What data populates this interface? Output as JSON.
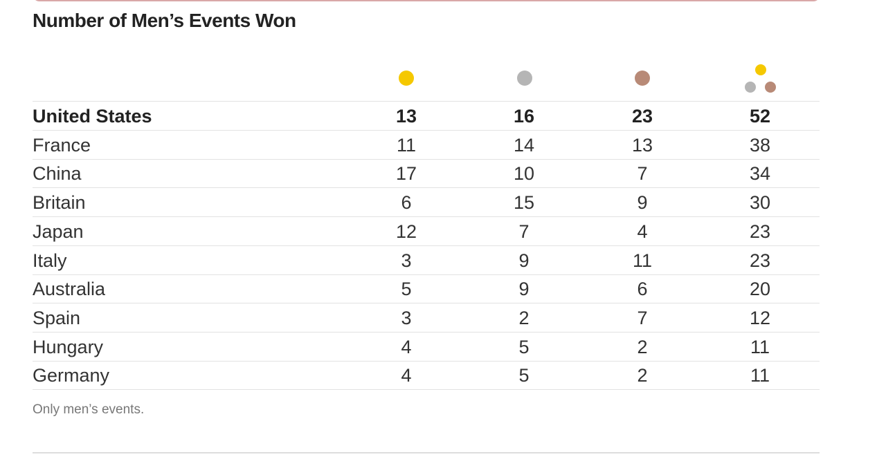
{
  "title": "Number of Men’s Events Won",
  "note": "Only men’s events.",
  "colors": {
    "gold": "#f5c800",
    "silver": "#b5b5b5",
    "bronze": "#b88a77"
  },
  "columns": [
    {
      "key": "gold",
      "icon": "gold-medal-icon"
    },
    {
      "key": "silver",
      "icon": "silver-medal-icon"
    },
    {
      "key": "bronze",
      "icon": "bronze-medal-icon"
    },
    {
      "key": "total",
      "icon": "total-medals-icon"
    }
  ],
  "chart_data": {
    "type": "table",
    "title": "Number of Men’s Events Won",
    "columns": [
      "gold",
      "silver",
      "bronze",
      "total"
    ],
    "rows": [
      {
        "country": "United States",
        "gold": "13",
        "silver": "16",
        "bronze": "23",
        "total": "52",
        "highlight": true
      },
      {
        "country": "France",
        "gold": "11",
        "silver": "14",
        "bronze": "13",
        "total": "38"
      },
      {
        "country": "China",
        "gold": "17",
        "silver": "10",
        "bronze": "7",
        "total": "34"
      },
      {
        "country": "Britain",
        "gold": "6",
        "silver": "15",
        "bronze": "9",
        "total": "30"
      },
      {
        "country": "Japan",
        "gold": "12",
        "silver": "7",
        "bronze": "4",
        "total": "23"
      },
      {
        "country": "Italy",
        "gold": "3",
        "silver": "9",
        "bronze": "11",
        "total": "23"
      },
      {
        "country": "Australia",
        "gold": "5",
        "silver": "9",
        "bronze": "6",
        "total": "20"
      },
      {
        "country": "Spain",
        "gold": "3",
        "silver": "2",
        "bronze": "7",
        "total": "12"
      },
      {
        "country": "Hungary",
        "gold": "4",
        "silver": "5",
        "bronze": "2",
        "total": "11"
      },
      {
        "country": "Germany",
        "gold": "4",
        "silver": "5",
        "bronze": "2",
        "total": "11"
      }
    ]
  }
}
